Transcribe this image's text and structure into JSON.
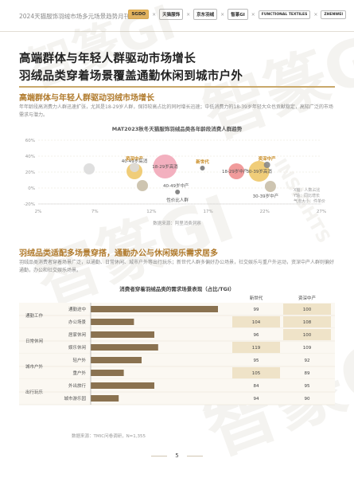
{
  "header": {
    "title": "2024天猫服饰羽绒市场多元场景趋势月刊",
    "logos": [
      "SGDO",
      "天猫服饰",
      "京东羽绒",
      "智篆GI",
      "FUNCTIONAL TEXTILES",
      "ZHENWEI"
    ]
  },
  "watermark": {
    "text": "智篆GI",
    "sub": "INSIGHTS"
  },
  "main_title": {
    "line1": "高端群体与年轻人群驱动市场增长",
    "line2": "羽绒品类穿着场景覆盖通勤休闲到城市户外"
  },
  "section1": {
    "title": "高端群体与年轻人群驱动羽绒市场增长",
    "para": "年年龄段高消费力人群迅速扩张，尤其是18-29岁人群，保持较高占比的同时增长迅速；中低消费力的18-39岁年轻大众也贡献稳定，高知广泛的市场需求与潜力。"
  },
  "chart1": {
    "title": "MAT2023秋冬天猫服饰羽绒品类各年龄段消费人群趋势",
    "source": "数据来源：阿里消费洞察",
    "note_line1": "X轴：人数占比",
    "note_line2": "Y轴：同比增长",
    "note_line3": "气泡大小：件单价"
  },
  "chart_data": [
    {
      "type": "scatter",
      "title": "MAT2023秋冬天猫服饰羽绒品类各年龄段消费人群趋势",
      "xlabel": "X轴：人数占比",
      "ylabel": "Y轴：同比增长",
      "xlim": [
        2,
        27
      ],
      "ylim": [
        -20,
        60
      ],
      "x_ticks": [
        "2%",
        "7%",
        "12%",
        "17%",
        "22%",
        "27%"
      ],
      "y_ticks": [
        "60%",
        "40%",
        "20%",
        "0%",
        "-20%"
      ],
      "points": [
        {
          "label": "",
          "x": 6.5,
          "y": 24,
          "size": 7,
          "color": "#dcdcdc"
        },
        {
          "label": "40-49岁高消",
          "x": 10.5,
          "y": 21,
          "size": 10,
          "color": "#eec86a"
        },
        {
          "label": "资深中产",
          "x": 10.5,
          "y": 26,
          "size": 6,
          "color": "#dcdcdc"
        },
        {
          "label": "18-29岁高消",
          "x": 13.2,
          "y": 27,
          "size": 15,
          "color": "#f2a7b8"
        },
        {
          "label": "40-49岁中产",
          "x": 11.2,
          "y": 3,
          "size": 7,
          "color": "#c9bfa8"
        },
        {
          "label": "新世代",
          "x": 16.5,
          "y": 25,
          "size": 3,
          "color": "#7a7a7a"
        },
        {
          "label": "18-29岁中产",
          "x": 19.5,
          "y": 21,
          "size": 10,
          "color": "#f09090"
        },
        {
          "label": "30-39岁高消",
          "x": 21.5,
          "y": 21,
          "size": 13,
          "color": "#eec86a"
        },
        {
          "label": "资深中产",
          "x": 22.2,
          "y": 29,
          "size": 4,
          "color": "#888888"
        },
        {
          "label": "30-39岁中产",
          "x": 22.5,
          "y": 2,
          "size": 7,
          "color": "#c9bfa8"
        },
        {
          "label": "性价比人群",
          "x": 14.3,
          "y": -5,
          "size": 3,
          "color": "#7a7a7a"
        }
      ]
    },
    {
      "type": "bar",
      "title": "消费者穿着羽绒品类的需求场景表现（占比/TGI）",
      "source": "数据来源：TMIC问卷调研，N=1,355",
      "columns": [
        "新世代",
        "资深中产"
      ],
      "rows": [
        {
          "group": "通勤工作",
          "scene": "通勤途中",
          "value": 100,
          "v1": "99",
          "v2": "100"
        },
        {
          "group": "",
          "scene": "办公场景",
          "value": 34,
          "v1": "104",
          "v2": "108"
        },
        {
          "group": "日常休闲",
          "scene": "居家休闲",
          "value": 50,
          "v1": "96",
          "v2": "100"
        },
        {
          "group": "",
          "scene": "娱乐休闲",
          "value": 53,
          "v1": "119",
          "v2": "109"
        },
        {
          "group": "城市户外",
          "scene": "轻户外",
          "value": 40,
          "v1": "95",
          "v2": "92"
        },
        {
          "group": "",
          "scene": "重户外",
          "value": 26,
          "v1": "105",
          "v2": "89"
        },
        {
          "group": "出行玩乐",
          "scene": "外出旅行",
          "value": 50,
          "v1": "84",
          "v2": "95"
        },
        {
          "group": "",
          "scene": "城市游乐园",
          "value": 22,
          "v1": "94",
          "v2": "90"
        }
      ],
      "v1_highlight": [
        "104",
        "119",
        "105"
      ],
      "v2_highlight": [
        "100",
        "108",
        "100"
      ]
    }
  ],
  "section2": {
    "title": "羽绒品类适配多场景穿搭，通勤办公与休闲娱乐需求居多",
    "para": "羽绒品类消费者穿着场景广泛，以通勤、日常休闲、城市户外等出行玩乐；新世代人群多偏好办公场景，社交娱乐与重户外运动，资深中产人群则偏好通勤，办公和社交娱乐场景。"
  },
  "page": {
    "number": "5"
  },
  "colors": {
    "accent": "#b07a2c",
    "bar": "#8a7250",
    "highlight": "#efe3c8",
    "rowbg": "#f6f1e6"
  }
}
